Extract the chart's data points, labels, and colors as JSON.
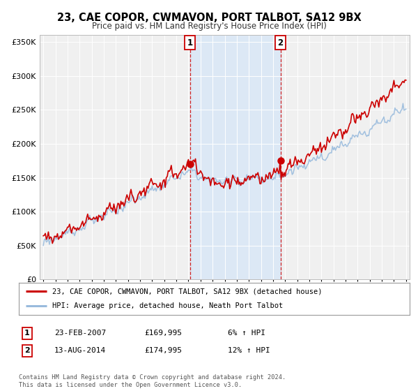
{
  "title": "23, CAE COPOR, CWMAVON, PORT TALBOT, SA12 9BX",
  "subtitle": "Price paid vs. HM Land Registry's House Price Index (HPI)",
  "legend_entry1": "23, CAE COPOR, CWMAVON, PORT TALBOT, SA12 9BX (detached house)",
  "legend_entry2": "HPI: Average price, detached house, Neath Port Talbot",
  "sale1_label": "1",
  "sale1_date": "23-FEB-2007",
  "sale1_price": "£169,995",
  "sale1_hpi": "6% ↑ HPI",
  "sale2_label": "2",
  "sale2_date": "13-AUG-2014",
  "sale2_price": "£174,995",
  "sale2_hpi": "12% ↑ HPI",
  "sale1_x": 2007.12,
  "sale2_x": 2014.62,
  "sale1_y": 169995,
  "sale2_y": 174995,
  "price_color": "#cc0000",
  "hpi_color": "#99bbdd",
  "shading_color": "#dce8f5",
  "vline_color": "#cc0000",
  "footnote": "Contains HM Land Registry data © Crown copyright and database right 2024.\nThis data is licensed under the Open Government Licence v3.0.",
  "ylim": [
    0,
    360000
  ],
  "xlim_start": 1994.7,
  "xlim_end": 2025.3,
  "yticks": [
    0,
    50000,
    100000,
    150000,
    200000,
    250000,
    300000,
    350000
  ],
  "background_color": "#ffffff",
  "plot_bg_color": "#f0f0f0"
}
